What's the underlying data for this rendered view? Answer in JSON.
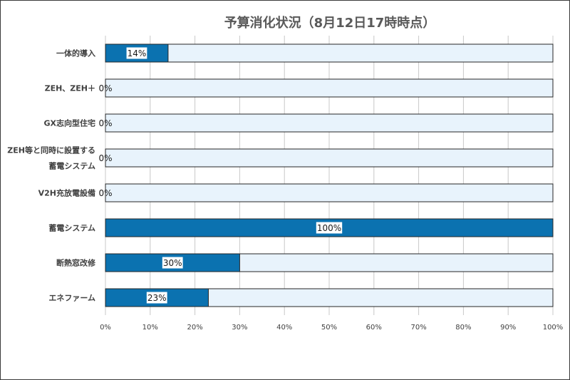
{
  "chart_data": {
    "type": "bar",
    "orientation": "horizontal",
    "title": "予算消化状況（8月12日17時時点）",
    "categories": [
      "一体的導入",
      "ZEH、ZEH＋",
      "GX志向型住宅",
      "ZEH等と同時に設置する蓄電システム",
      "V2H充放電設備",
      "蓄電システム",
      "断熱窓改修",
      "エネファーム"
    ],
    "category_lines": [
      [
        "一体的導入"
      ],
      [
        "ZEH、ZEH＋"
      ],
      [
        "GX志向型住宅"
      ],
      [
        "ZEH等と同時に設置する",
        "蓄電システム"
      ],
      [
        "V2H充放電設備"
      ],
      [
        "蓄電システム"
      ],
      [
        "断熱窓改修"
      ],
      [
        "エネファーム"
      ]
    ],
    "values": [
      14,
      0,
      0,
      0,
      0,
      100,
      30,
      23
    ],
    "data_labels": [
      "14%",
      "0%",
      "0%",
      "0%",
      "0%",
      "100%",
      "30%",
      "23%"
    ],
    "xlim": [
      0,
      100
    ],
    "x_ticks": [
      0,
      10,
      20,
      30,
      40,
      50,
      60,
      70,
      80,
      90,
      100
    ],
    "x_tick_labels": [
      "0%",
      "10%",
      "20%",
      "30%",
      "40%",
      "50%",
      "60%",
      "70%",
      "80%",
      "90%",
      "100%"
    ],
    "xlabel": "",
    "ylabel": "",
    "grid": true,
    "colors": {
      "bar": "#0b72b0",
      "track": "#e8f3fc",
      "border": "#262626",
      "grid": "#c8c8c8"
    }
  }
}
